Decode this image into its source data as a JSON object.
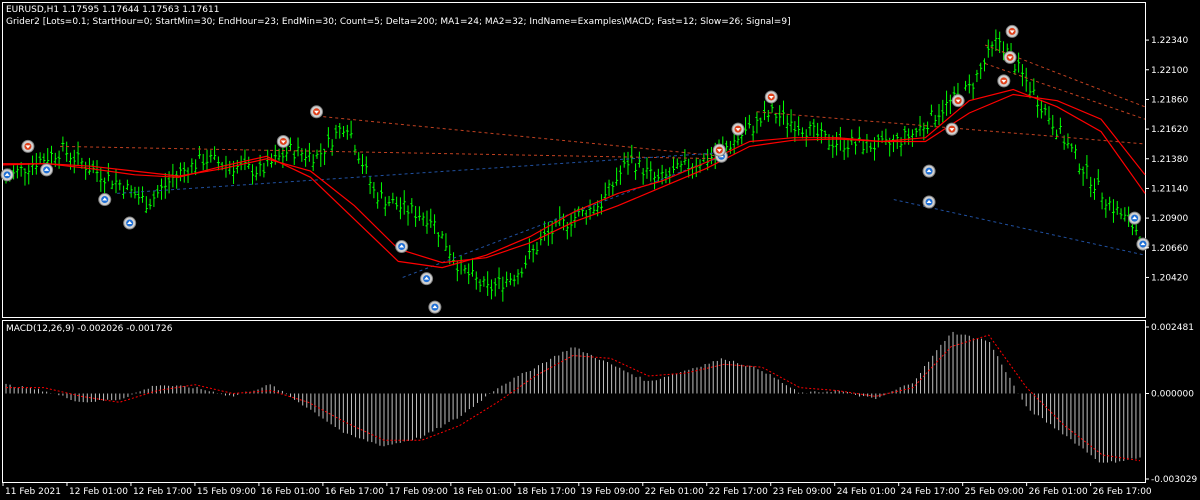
{
  "header": {
    "symbol_line": "EURUSD,H1  1.17595 1.17644 1.17563 1.17611",
    "ea_line": "Grider2 [Lots=0.1; StartHour=0; StartMin=30; EndHour=23; EndMin=30; Count=5; Delta=200; MA1=24; MA2=32; IndName=Examples\\MACD; Fast=12; Slow=26; Signal=9]"
  },
  "macd_header": "MACD(12,26,9) -0.002026 -0.001726",
  "colors": {
    "background": "#000000",
    "grid": "#808080",
    "bull_candle": "#00ff00",
    "ma": "#ff0000",
    "histogram": "#c0c0c0",
    "signal": "#ff0000",
    "buy_marker": "#1e6fd6",
    "sell_marker": "#e0401a",
    "text": "#ffffff"
  },
  "chart_data": [
    {
      "type": "candlestick",
      "title": "EURUSD,H1",
      "y_ticks": [
        "1.22340",
        "1.22100",
        "1.21860",
        "1.21620",
        "1.21380",
        "1.21140",
        "1.20900",
        "1.20660",
        "1.20420"
      ],
      "ylim": [
        1.201,
        1.2264
      ],
      "series": [
        {
          "name": "MA1=24",
          "values": [
            1.2133,
            1.2134,
            1.213,
            1.2125,
            1.2123,
            1.2132,
            1.214,
            1.2123,
            1.2089,
            1.2055,
            1.205,
            1.206,
            1.2075,
            1.2095,
            1.211,
            1.212,
            1.2135,
            1.2152,
            1.2155,
            1.2155,
            1.2152,
            1.2155,
            1.2185,
            1.2194,
            1.218,
            1.216,
            1.211
          ]
        },
        {
          "name": "MA2=32",
          "values": [
            1.2134,
            1.2134,
            1.2132,
            1.2128,
            1.2124,
            1.213,
            1.2138,
            1.2128,
            1.21,
            1.2065,
            1.2054,
            1.2058,
            1.207,
            1.2087,
            1.21,
            1.2115,
            1.213,
            1.2148,
            1.2153,
            1.2154,
            1.2152,
            1.2152,
            1.2175,
            1.219,
            1.2185,
            1.217,
            1.2125
          ]
        }
      ],
      "close_path": [
        1.2122,
        1.2135,
        1.2145,
        1.213,
        1.2118,
        1.2102,
        1.2125,
        1.2138,
        1.2132,
        1.2128,
        1.2145,
        1.214,
        1.2168,
        1.211,
        1.2098,
        1.209,
        1.205,
        1.2032,
        1.2045,
        1.2075,
        1.209,
        1.2102,
        1.2138,
        1.212,
        1.2132,
        1.214,
        1.2158,
        1.2175,
        1.2165,
        1.2152,
        1.215,
        1.2148,
        1.2158,
        1.2178,
        1.2195,
        1.2235,
        1.22,
        1.2165,
        1.213,
        1.21,
        1.2078
      ],
      "grid": false
    },
    {
      "type": "histogram",
      "title": "MACD(12,26,9)",
      "y_ticks": [
        "0.002481",
        "0.000000",
        "-0.003029"
      ],
      "ylim": [
        -0.003029,
        0.002481
      ],
      "series": [
        {
          "name": "MACD",
          "values": [
            0.0003,
            0.0001,
            -0.0003,
            -0.0002,
            0.0003,
            0.0002,
            -0.0001,
            0.0003,
            -0.0005,
            -0.0014,
            -0.0018,
            -0.0015,
            -0.0008,
            0.0002,
            0.0009,
            0.0016,
            0.001,
            0.0004,
            0.0008,
            0.0012,
            0.0008,
            0.0,
            0.0001,
            -0.0002,
            0.0004,
            0.0021,
            0.0018,
            -0.0005,
            -0.0014,
            -0.0024,
            -0.0022
          ]
        },
        {
          "name": "Signal",
          "values": [
            0.0002,
            0.0002,
            -0.0001,
            -0.0003,
            0.0001,
            0.0003,
            0.0,
            0.0001,
            -0.0003,
            -0.001,
            -0.0016,
            -0.0016,
            -0.0011,
            -0.0003,
            0.0006,
            0.0013,
            0.0012,
            0.0006,
            0.0007,
            0.001,
            0.0009,
            0.0002,
            0.0001,
            -0.0001,
            0.0002,
            0.0016,
            0.002,
            0.0002,
            -0.0011,
            -0.0021,
            -0.0023
          ]
        }
      ]
    }
  ],
  "x_ticks": [
    "11 Feb 2021",
    "12 Feb 01:00",
    "12 Feb 17:00",
    "15 Feb 09:00",
    "16 Feb 01:00",
    "16 Feb 17:00",
    "17 Feb 09:00",
    "18 Feb 01:00",
    "18 Feb 17:00",
    "19 Feb 09:00",
    "22 Feb 01:00",
    "22 Feb 17:00",
    "23 Feb 09:00",
    "24 Feb 01:00",
    "24 Feb 17:00",
    "25 Feb 09:00",
    "26 Feb 01:00",
    "26 Feb 17:00"
  ],
  "markers": {
    "buy_positions": [
      [
        0.2,
        1.2125
      ],
      [
        2.1,
        1.2129
      ],
      [
        4.9,
        1.2105
      ],
      [
        6.1,
        1.2086
      ],
      [
        19.2,
        1.2067
      ],
      [
        20.4,
        1.2041
      ],
      [
        20.8,
        1.2018
      ],
      [
        34.6,
        1.214
      ],
      [
        44.6,
        1.2128
      ],
      [
        44.6,
        1.2103
      ],
      [
        54.5,
        1.209
      ],
      [
        54.9,
        1.2069
      ]
    ],
    "sell_positions": [
      [
        1.2,
        1.2148
      ],
      [
        13.5,
        1.2152
      ],
      [
        15.1,
        1.2176
      ],
      [
        34.5,
        1.2145
      ],
      [
        35.4,
        1.2162
      ],
      [
        37.0,
        1.2188
      ],
      [
        45.7,
        1.2162
      ],
      [
        46.0,
        1.2185
      ],
      [
        48.2,
        1.2201
      ],
      [
        48.5,
        1.222
      ],
      [
        48.6,
        1.2241
      ]
    ]
  }
}
